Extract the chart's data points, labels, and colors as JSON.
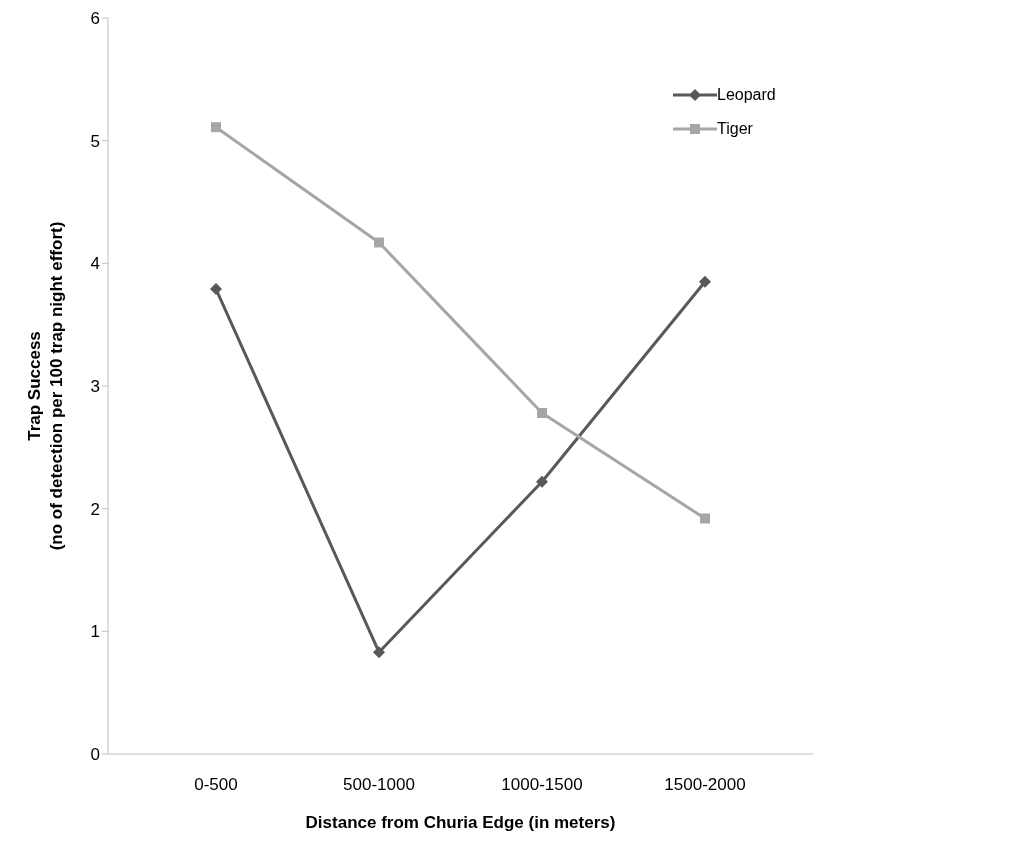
{
  "chart_data": {
    "type": "line",
    "xlabel": "Distance from Churia Edge (in meters)",
    "ylabel": "Trap Success\n(no of detection per 100 trap night effort)",
    "categories": [
      "0-500",
      "500-1000",
      "1000-1500",
      "1500-2000"
    ],
    "series": [
      {
        "name": "Leopard",
        "color": "#595959",
        "marker": "diamond",
        "values": [
          3.79,
          0.83,
          2.22,
          3.85
        ]
      },
      {
        "name": "Tiger",
        "color": "#a6a6a6",
        "marker": "square",
        "values": [
          5.11,
          4.17,
          2.78,
          1.92
        ]
      }
    ],
    "ylim": [
      0,
      6
    ],
    "yticks": [
      0,
      1,
      2,
      3,
      4,
      5,
      6
    ],
    "grid": false,
    "legend": "top right"
  }
}
